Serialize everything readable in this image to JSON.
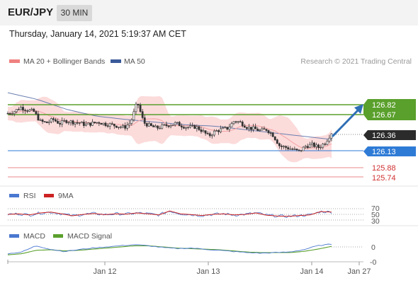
{
  "header": {
    "symbol": "EUR/JPY",
    "timeframe": "30 MIN"
  },
  "datetime": "Thursday, January 14, 2021 5:19:37 AM CET",
  "legend": {
    "ma20_label": "MA 20 + Bollinger Bands",
    "ma50_label": "MA 50",
    "ma20_color": "#f08080",
    "ma50_color": "#3a5a9a",
    "credit": "Research © 2021 Trading Central"
  },
  "price_levels": {
    "res2": "126.82",
    "res1": "126.67",
    "current": "126.36",
    "pivot": "126.13",
    "sup1": "125.88",
    "sup2": "125.74"
  },
  "colors": {
    "resistance": "#5aa02c",
    "pivot": "#2e7bd6",
    "support": "#e04040",
    "current": "#2b2b2b",
    "candle": "#333333",
    "bands": "#fbd5d5",
    "ma50": "#6b7fb0",
    "ma20": "#f08080",
    "arrow": "#2f6fb5",
    "rsi": "#4a78d0",
    "rsi_ma": "#cc2222",
    "macd": "#4a78d0",
    "macd_signal": "#5aa02c"
  },
  "rsi": {
    "label": "RSI",
    "ma_label": "9MA",
    "levels": [
      "70",
      "50",
      "30"
    ]
  },
  "macd": {
    "label": "MACD",
    "signal_label": "MACD Signal",
    "levels": [
      "0",
      "-0"
    ]
  },
  "xaxis": {
    "labels": [
      "Jan 12",
      "Jan 13",
      "Jan 14",
      "Jan 27"
    ]
  },
  "chart_data": {
    "type": "candlestick",
    "instrument": "EUR/JPY",
    "interval": "30 MIN",
    "yrange": [
      125.7,
      127.1
    ],
    "resistance": [
      126.82,
      126.67
    ],
    "pivot": 126.13,
    "support": [
      125.88,
      125.74
    ],
    "last": 126.36,
    "close_path": [
      126.69,
      126.72,
      126.78,
      126.74,
      126.72,
      126.57,
      126.55,
      126.6,
      126.54,
      126.58,
      126.56,
      126.55,
      126.52,
      126.54,
      126.56,
      126.53,
      126.52,
      126.5,
      126.48,
      126.56,
      126.86,
      126.55,
      126.5,
      126.47,
      126.5,
      126.52,
      126.54,
      126.5,
      126.48,
      126.49,
      126.43,
      126.35,
      126.42,
      126.45,
      126.47,
      126.58,
      126.55,
      126.48,
      126.46,
      126.43,
      126.45,
      126.36,
      126.2,
      126.18,
      126.15,
      126.12,
      126.2,
      126.22,
      126.18,
      126.25,
      126.4
    ],
    "ma50_path": [
      127.0,
      126.9,
      126.75,
      126.65,
      126.6,
      126.56,
      126.52,
      126.5,
      126.45,
      126.4,
      126.35,
      126.3
    ],
    "rsi_series": [
      {
        "name": "RSI",
        "values": [
          50,
          52,
          48,
          55,
          58,
          52,
          45,
          50,
          53,
          49,
          52,
          51,
          55,
          52,
          48,
          62,
          52,
          49,
          46,
          50,
          52,
          48,
          50,
          55,
          47,
          44,
          43,
          46,
          48,
          60,
          58
        ]
      }
    ],
    "macd_series": [
      {
        "name": "MACD",
        "values": [
          -0.12,
          -0.09,
          0.02,
          -0.04,
          -0.08,
          -0.05,
          -0.02,
          0.0,
          0.02,
          0.04,
          0.02,
          -0.01,
          -0.03,
          -0.02,
          -0.04,
          -0.06,
          -0.08,
          -0.1,
          -0.11,
          -0.1,
          -0.09,
          -0.05,
          0.02,
          0.05
        ]
      },
      {
        "name": "MACD Signal",
        "values": [
          -0.14,
          -0.12,
          -0.06,
          -0.05,
          -0.07,
          -0.06,
          -0.04,
          -0.02,
          0.0,
          0.02,
          0.02,
          0.0,
          -0.02,
          -0.03,
          -0.04,
          -0.05,
          -0.07,
          -0.09,
          -0.1,
          -0.1,
          -0.1,
          -0.08,
          -0.04,
          0.01
        ]
      }
    ]
  }
}
